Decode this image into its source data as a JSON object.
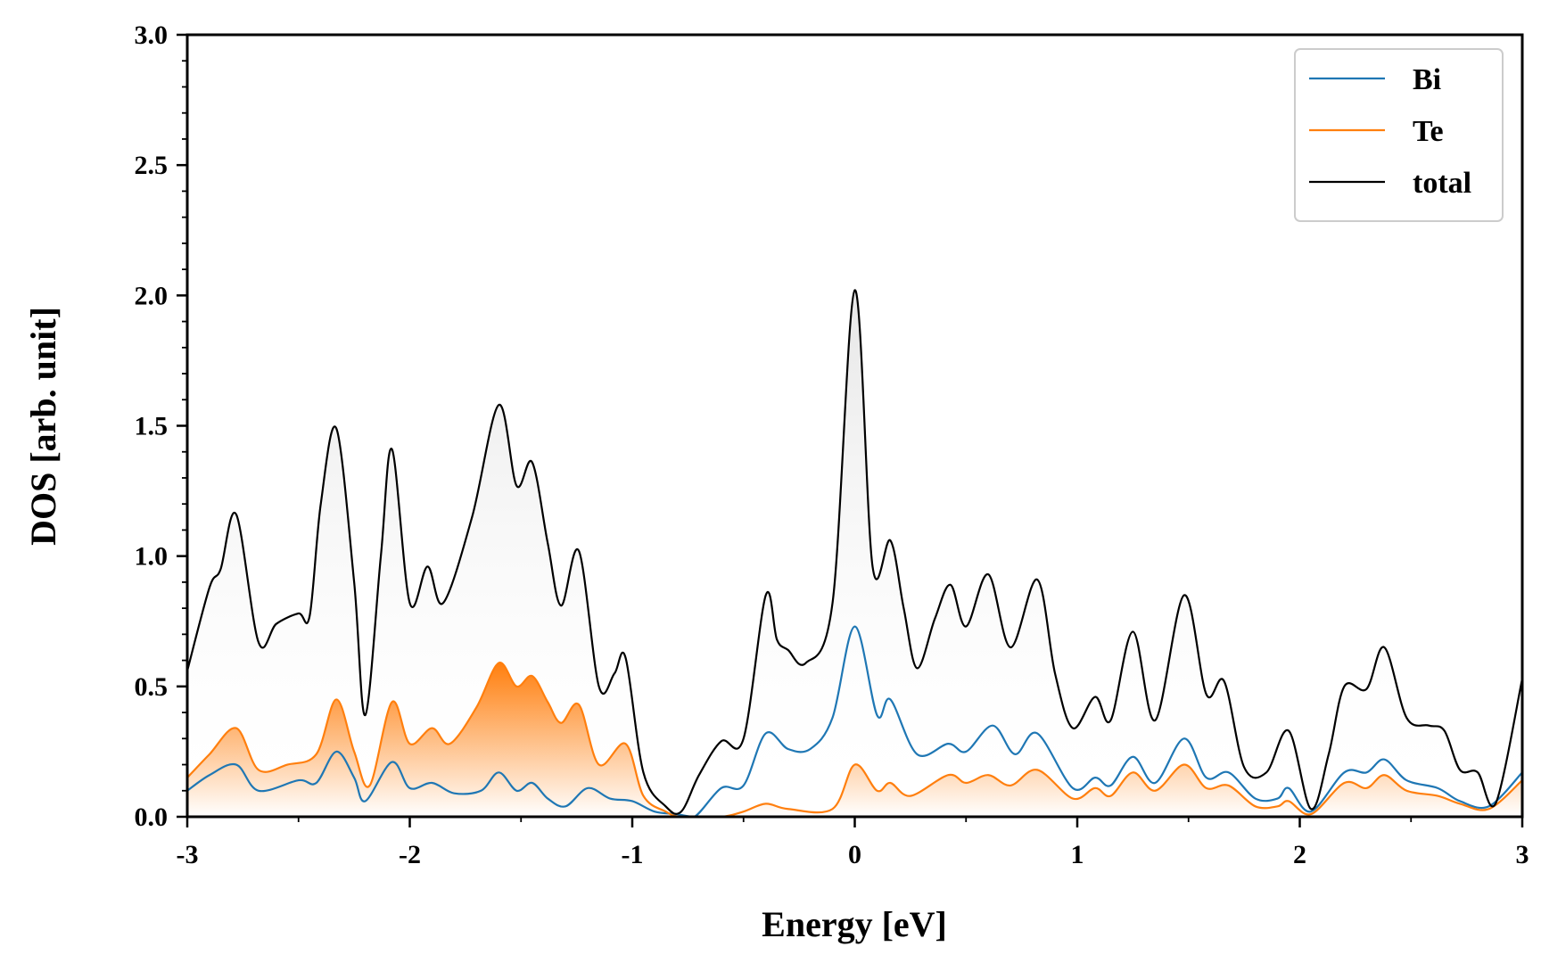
{
  "chart_data": {
    "type": "area",
    "title": "",
    "xlabel": "Energy [eV]",
    "ylabel": "DOS [arb. unit]",
    "xlim": [
      -3,
      3
    ],
    "ylim": [
      0,
      3.0
    ],
    "xticks": [
      -3,
      -2,
      -1,
      0,
      1,
      2,
      3
    ],
    "xtick_labels": [
      "-3",
      "-2",
      "-1",
      "0",
      "1",
      "2",
      "3"
    ],
    "yticks": [
      0,
      0.5,
      1.0,
      1.5,
      2.0,
      2.5,
      3.0
    ],
    "ytick_labels": [
      "0.0",
      "0.5",
      "1.0",
      "1.5",
      "2.0",
      "2.5",
      "3.0"
    ],
    "grid": false,
    "legend_position": "top-right",
    "series": [
      {
        "name": "Bi",
        "color": "#1f77b4",
        "fill": "none",
        "x": [
          -3.0,
          -2.9,
          -2.78,
          -2.68,
          -2.5,
          -2.42,
          -2.33,
          -2.25,
          -2.2,
          -2.08,
          -2.0,
          -1.9,
          -1.8,
          -1.68,
          -1.6,
          -1.52,
          -1.45,
          -1.38,
          -1.3,
          -1.2,
          -1.1,
          -1.0,
          -0.9,
          -0.8,
          -0.72,
          -0.6,
          -0.5,
          -0.4,
          -0.3,
          -0.2,
          -0.1,
          0.0,
          0.1,
          0.16,
          0.28,
          0.42,
          0.5,
          0.62,
          0.72,
          0.82,
          0.98,
          1.08,
          1.15,
          1.25,
          1.35,
          1.48,
          1.58,
          1.68,
          1.8,
          1.9,
          1.95,
          2.05,
          2.2,
          2.3,
          2.38,
          2.48,
          2.62,
          2.72,
          2.85,
          3.0
        ],
        "values": [
          0.1,
          0.16,
          0.2,
          0.1,
          0.14,
          0.13,
          0.25,
          0.15,
          0.06,
          0.21,
          0.11,
          0.13,
          0.09,
          0.1,
          0.17,
          0.1,
          0.13,
          0.07,
          0.04,
          0.11,
          0.07,
          0.06,
          0.02,
          0.01,
          0.0,
          0.11,
          0.12,
          0.32,
          0.26,
          0.26,
          0.38,
          0.73,
          0.39,
          0.45,
          0.24,
          0.28,
          0.25,
          0.35,
          0.24,
          0.32,
          0.11,
          0.15,
          0.12,
          0.23,
          0.13,
          0.3,
          0.15,
          0.17,
          0.07,
          0.07,
          0.11,
          0.02,
          0.17,
          0.17,
          0.22,
          0.14,
          0.11,
          0.06,
          0.04,
          0.17
        ]
      },
      {
        "name": "Te",
        "color": "#ff7f0e",
        "fill": "gradient",
        "x": [
          -3.0,
          -2.9,
          -2.78,
          -2.68,
          -2.55,
          -2.42,
          -2.33,
          -2.25,
          -2.18,
          -2.08,
          -2.0,
          -1.9,
          -1.82,
          -1.7,
          -1.6,
          -1.52,
          -1.45,
          -1.38,
          -1.32,
          -1.24,
          -1.15,
          -1.03,
          -0.95,
          -0.85,
          -0.78,
          -0.6,
          -0.5,
          -0.4,
          -0.3,
          -0.1,
          0.0,
          0.1,
          0.16,
          0.25,
          0.42,
          0.5,
          0.6,
          0.7,
          0.82,
          0.98,
          1.08,
          1.15,
          1.25,
          1.35,
          1.48,
          1.58,
          1.68,
          1.8,
          1.9,
          1.95,
          2.05,
          2.2,
          2.3,
          2.38,
          2.48,
          2.62,
          2.72,
          2.85,
          3.0
        ],
        "values": [
          0.15,
          0.24,
          0.34,
          0.18,
          0.2,
          0.24,
          0.45,
          0.25,
          0.12,
          0.44,
          0.28,
          0.34,
          0.28,
          0.42,
          0.59,
          0.5,
          0.54,
          0.44,
          0.36,
          0.43,
          0.2,
          0.28,
          0.08,
          0.02,
          0.0,
          0.0,
          0.02,
          0.05,
          0.03,
          0.03,
          0.2,
          0.1,
          0.13,
          0.08,
          0.16,
          0.13,
          0.16,
          0.12,
          0.18,
          0.07,
          0.11,
          0.08,
          0.17,
          0.1,
          0.2,
          0.11,
          0.12,
          0.04,
          0.04,
          0.06,
          0.01,
          0.13,
          0.11,
          0.16,
          0.1,
          0.08,
          0.05,
          0.03,
          0.14
        ]
      },
      {
        "name": "total",
        "color": "#000000",
        "fill": "gradient",
        "x": [
          -3.0,
          -2.9,
          -2.85,
          -2.78,
          -2.68,
          -2.6,
          -2.5,
          -2.45,
          -2.4,
          -2.33,
          -2.25,
          -2.2,
          -2.13,
          -2.08,
          -2.0,
          -1.92,
          -1.85,
          -1.72,
          -1.6,
          -1.52,
          -1.45,
          -1.38,
          -1.32,
          -1.24,
          -1.15,
          -1.08,
          -1.03,
          -0.95,
          -0.85,
          -0.78,
          -0.7,
          -0.6,
          -0.5,
          -0.4,
          -0.35,
          -0.3,
          -0.22,
          -0.1,
          0.0,
          0.08,
          0.16,
          0.22,
          0.28,
          0.36,
          0.43,
          0.5,
          0.6,
          0.7,
          0.82,
          0.9,
          0.98,
          1.08,
          1.15,
          1.25,
          1.35,
          1.48,
          1.58,
          1.66,
          1.75,
          1.85,
          1.95,
          2.05,
          2.13,
          2.2,
          2.3,
          2.38,
          2.48,
          2.58,
          2.65,
          2.72,
          2.8,
          2.88,
          3.0
        ],
        "values": [
          0.56,
          0.88,
          0.95,
          1.16,
          0.67,
          0.74,
          0.78,
          0.77,
          1.2,
          1.49,
          0.9,
          0.39,
          1.0,
          1.41,
          0.82,
          0.96,
          0.82,
          1.15,
          1.58,
          1.27,
          1.36,
          1.05,
          0.81,
          1.02,
          0.5,
          0.55,
          0.61,
          0.17,
          0.04,
          0.02,
          0.16,
          0.29,
          0.3,
          0.85,
          0.68,
          0.64,
          0.59,
          0.82,
          2.02,
          0.96,
          1.06,
          0.8,
          0.57,
          0.76,
          0.89,
          0.73,
          0.93,
          0.65,
          0.91,
          0.55,
          0.34,
          0.46,
          0.37,
          0.71,
          0.37,
          0.85,
          0.47,
          0.52,
          0.19,
          0.17,
          0.33,
          0.03,
          0.24,
          0.5,
          0.49,
          0.65,
          0.38,
          0.35,
          0.33,
          0.18,
          0.17,
          0.05,
          0.53
        ]
      }
    ]
  }
}
